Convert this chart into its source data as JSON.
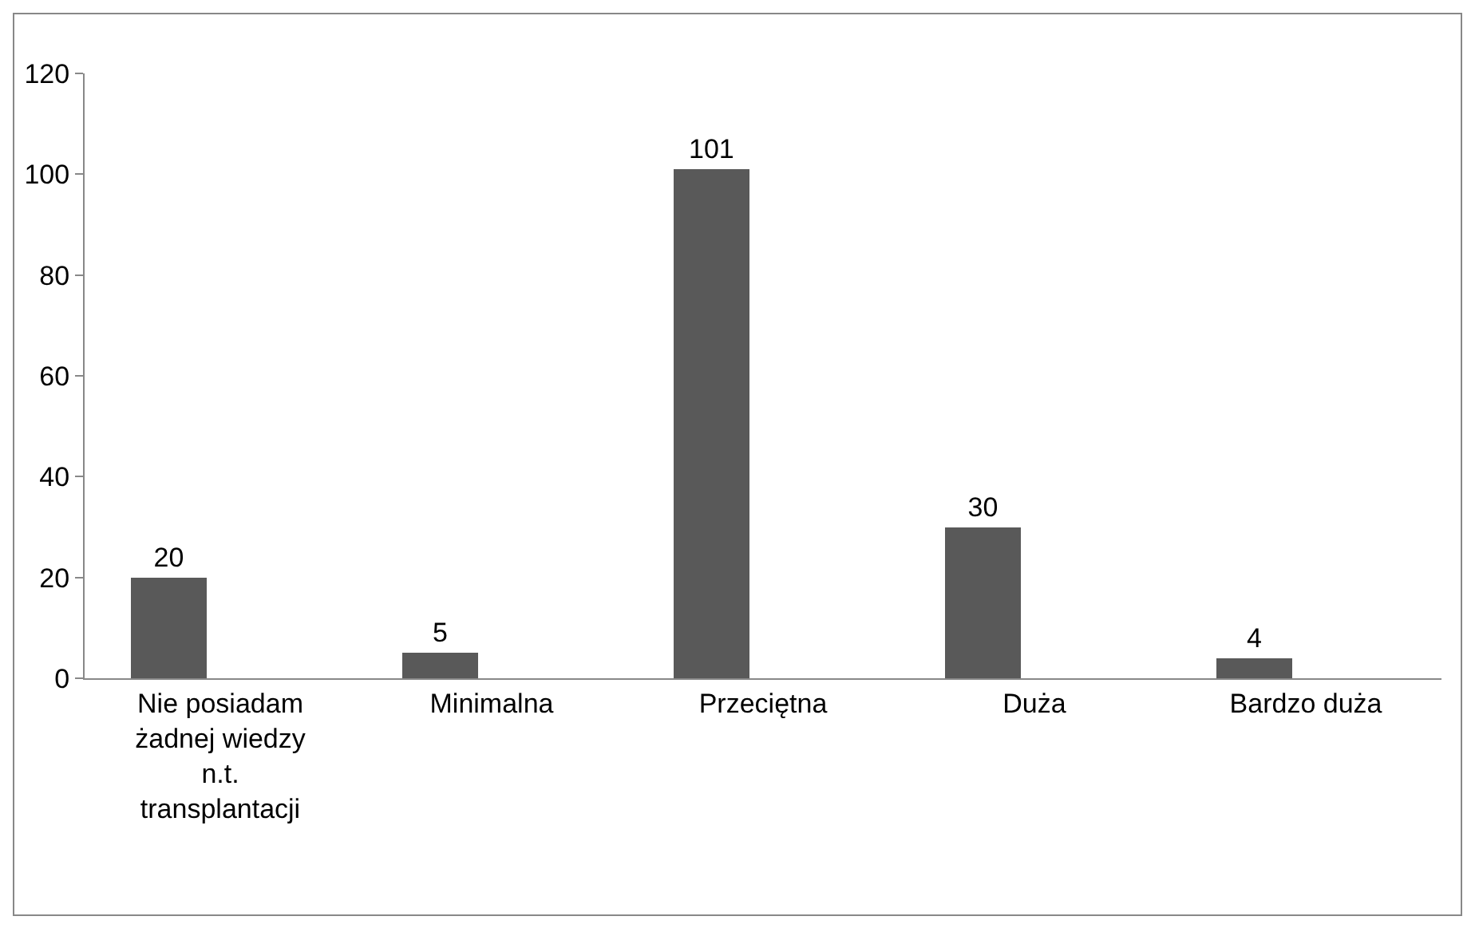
{
  "chart_data": {
    "type": "bar",
    "categories": [
      "Nie posiadam żadnej wiedzy n.t. transplantacji",
      "Minimalna",
      "Przeciętna",
      "Duża",
      "Bardzo duża"
    ],
    "values": [
      20,
      5,
      101,
      30,
      4
    ],
    "color": "#595959",
    "ylim": [
      0,
      120
    ],
    "yticks": [
      0,
      20,
      40,
      60,
      80,
      100,
      120
    ],
    "grid": false,
    "data_labels": true,
    "legend": false
  }
}
